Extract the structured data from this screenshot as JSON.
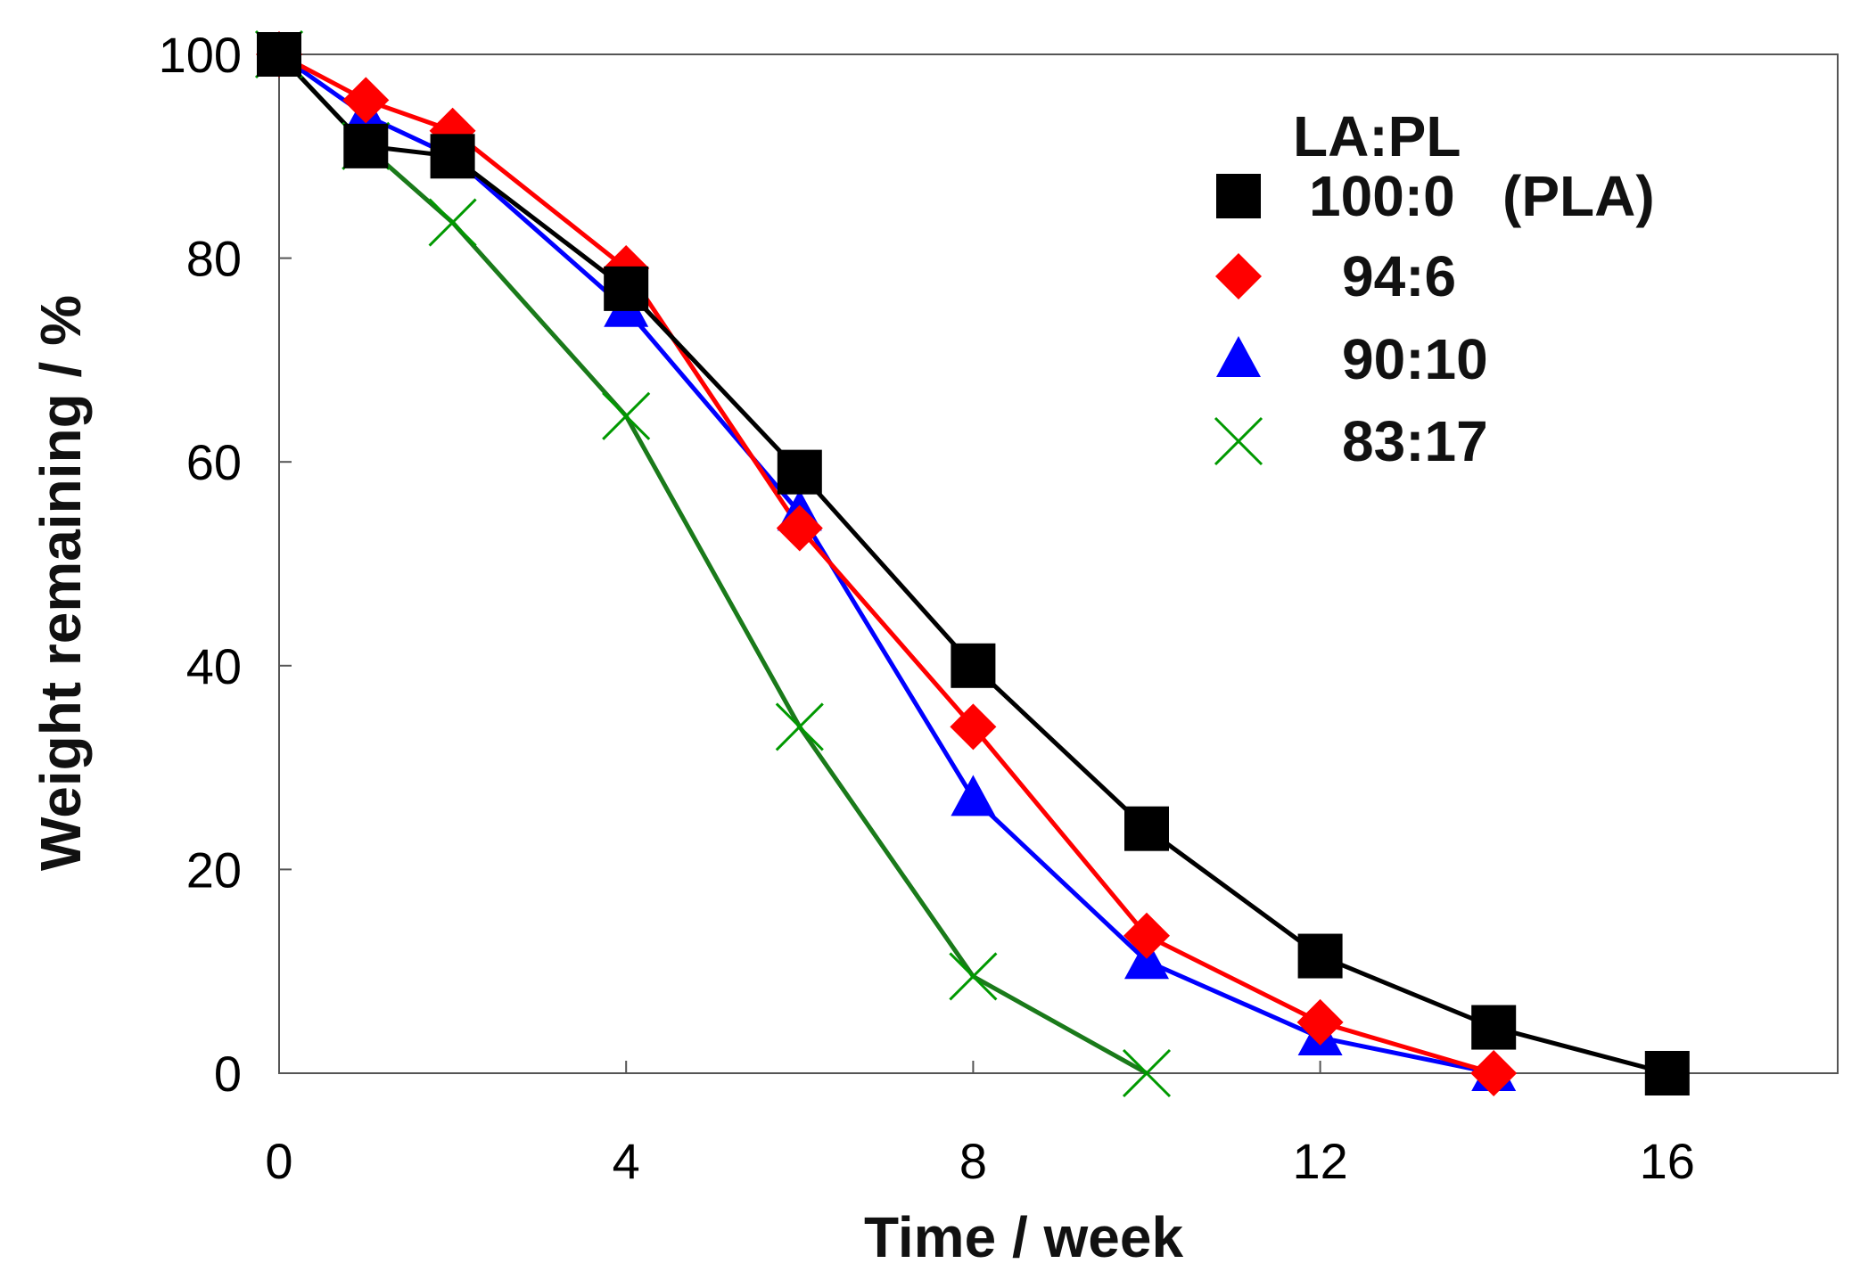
{
  "chart_data": {
    "type": "line",
    "title": "",
    "xlabel": "Time / week",
    "ylabel": "Weight remaining / %",
    "xlim": [
      0,
      18
    ],
    "ylim": [
      0,
      100
    ],
    "xticks": [
      0,
      4,
      8,
      12,
      16
    ],
    "yticks": [
      0,
      20,
      40,
      60,
      80,
      100
    ],
    "grid": false,
    "legend_title": "LA:PL",
    "legend_position": "top-right",
    "series": [
      {
        "name": "100:0   (PLA)",
        "marker": "square",
        "color": "#000000",
        "x": [
          0,
          1,
          2,
          4,
          6,
          8,
          10,
          12,
          14,
          16
        ],
        "y": [
          100,
          91,
          90,
          77,
          59,
          40,
          24,
          11.5,
          4.5,
          0
        ]
      },
      {
        "name": "94:6",
        "marker": "diamond",
        "color": "#ff0000",
        "x": [
          0,
          1,
          2,
          4,
          6,
          8,
          10,
          12,
          14
        ],
        "y": [
          100,
          95.5,
          92.5,
          79,
          53.5,
          34,
          13.5,
          5,
          0
        ]
      },
      {
        "name": "90:10",
        "marker": "triangle",
        "color": "#0000ff",
        "x": [
          0,
          1,
          2,
          4,
          6,
          8,
          10,
          12,
          14
        ],
        "y": [
          100,
          94,
          90,
          75,
          55,
          27,
          11,
          3.5,
          0
        ]
      },
      {
        "name": "83:17",
        "marker": "cross",
        "color": "#009900",
        "line_color": "#1a7a1a",
        "x": [
          0,
          1,
          2,
          4,
          6,
          8,
          10
        ],
        "y": [
          100,
          91,
          83.5,
          64.5,
          34,
          9.5,
          0
        ]
      }
    ]
  }
}
